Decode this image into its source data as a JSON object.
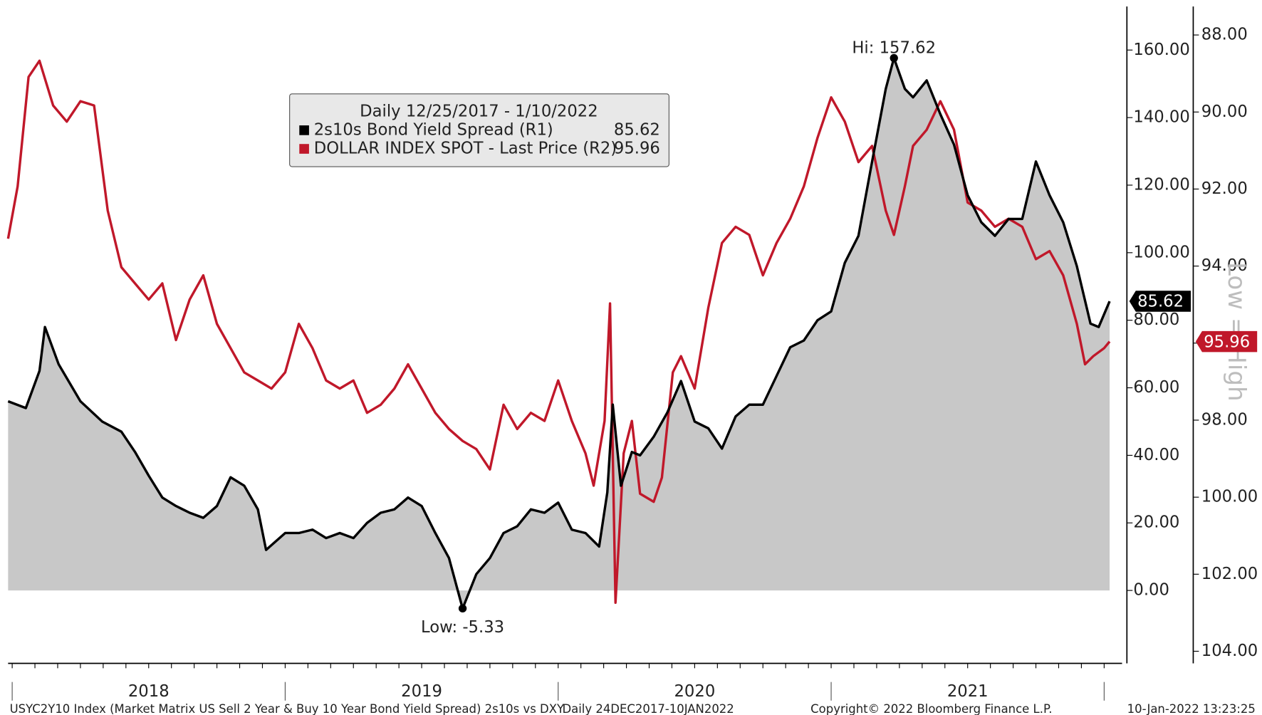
{
  "chart_data": {
    "type": "line",
    "legend_title": "Daily 12/25/2017 - 1/10/2022",
    "series": [
      {
        "name": "2s10s Bond Yield Spread (R1)",
        "color": "#000000",
        "fill": "#c8c8c8",
        "axis": "y",
        "last_value": 85.62,
        "x": [
          2017.985,
          2018.05,
          2018.1,
          2018.12,
          2018.17,
          2018.25,
          2018.33,
          2018.4,
          2018.45,
          2018.5,
          2018.55,
          2018.6,
          2018.65,
          2018.7,
          2018.75,
          2018.8,
          2018.85,
          2018.9,
          2018.93,
          2019.0,
          2019.05,
          2019.1,
          2019.15,
          2019.2,
          2019.25,
          2019.3,
          2019.35,
          2019.4,
          2019.45,
          2019.5,
          2019.55,
          2019.6,
          2019.65,
          2019.7,
          2019.75,
          2019.8,
          2019.85,
          2019.9,
          2019.95,
          2020.0,
          2020.05,
          2020.1,
          2020.15,
          2020.18,
          2020.2,
          2020.23,
          2020.27,
          2020.3,
          2020.35,
          2020.4,
          2020.45,
          2020.5,
          2020.55,
          2020.6,
          2020.65,
          2020.7,
          2020.75,
          2020.8,
          2020.85,
          2020.9,
          2020.95,
          2021.0,
          2021.05,
          2021.1,
          2021.15,
          2021.2,
          2021.23,
          2021.27,
          2021.3,
          2021.35,
          2021.4,
          2021.45,
          2021.5,
          2021.55,
          2021.6,
          2021.65,
          2021.7,
          2021.75,
          2021.8,
          2021.85,
          2021.9,
          2021.95,
          2021.98,
          2022.02
        ],
        "values": [
          56,
          54,
          65,
          78,
          67,
          56,
          50,
          47,
          41,
          34,
          27.5,
          25,
          23,
          21.5,
          25,
          33.5,
          31,
          24,
          12,
          17,
          17,
          18,
          15.5,
          17,
          15.5,
          20,
          23,
          24,
          27.5,
          25,
          17,
          9.6,
          -5.33,
          4.8,
          9.6,
          17,
          19,
          24,
          23,
          26,
          18,
          17,
          13,
          29,
          55,
          31,
          41,
          40,
          45.5,
          52.7,
          62,
          50,
          48,
          42,
          51.5,
          55,
          55,
          63.5,
          72,
          74,
          80,
          82.6,
          97,
          105,
          127,
          148.5,
          157.62,
          148.5,
          146,
          151,
          141,
          132,
          117,
          109,
          105,
          110,
          110,
          127,
          117,
          109,
          96,
          79,
          78,
          85.62
        ]
      },
      {
        "name": "DOLLAR INDEX SPOT - Last Price (R2)",
        "color": "#c0182a",
        "axis": "y2",
        "last_value": 95.96,
        "x": [
          2017.985,
          2018.02,
          2018.06,
          2018.1,
          2018.15,
          2018.2,
          2018.25,
          2018.3,
          2018.35,
          2018.4,
          2018.45,
          2018.5,
          2018.55,
          2018.6,
          2018.65,
          2018.7,
          2018.75,
          2018.8,
          2018.85,
          2018.9,
          2018.95,
          2019.0,
          2019.05,
          2019.1,
          2019.15,
          2019.2,
          2019.25,
          2019.3,
          2019.35,
          2019.4,
          2019.45,
          2019.5,
          2019.55,
          2019.6,
          2019.65,
          2019.7,
          2019.75,
          2019.8,
          2019.85,
          2019.9,
          2019.95,
          2020.0,
          2020.05,
          2020.1,
          2020.13,
          2020.17,
          2020.19,
          2020.21,
          2020.24,
          2020.27,
          2020.3,
          2020.35,
          2020.38,
          2020.42,
          2020.45,
          2020.5,
          2020.55,
          2020.6,
          2020.65,
          2020.7,
          2020.75,
          2020.8,
          2020.85,
          2020.9,
          2020.95,
          2021.0,
          2021.05,
          2021.1,
          2021.15,
          2021.2,
          2021.23,
          2021.27,
          2021.3,
          2021.35,
          2021.4,
          2021.45,
          2021.5,
          2021.55,
          2021.6,
          2021.65,
          2021.7,
          2021.75,
          2021.8,
          2021.85,
          2021.9,
          2021.93,
          2021.96,
          2022.0,
          2022.02
        ],
        "values": [
          93.29,
          91.93,
          89.09,
          88.67,
          89.83,
          90.25,
          89.72,
          89.83,
          92.56,
          94.03,
          94.45,
          94.87,
          94.45,
          95.92,
          94.87,
          94.24,
          95.5,
          96.13,
          96.76,
          96.97,
          97.18,
          96.76,
          95.5,
          96.13,
          96.97,
          97.18,
          96.97,
          97.81,
          97.6,
          97.18,
          96.55,
          97.18,
          97.81,
          98.23,
          98.54,
          98.75,
          99.28,
          97.6,
          98.23,
          97.81,
          98.02,
          96.97,
          98.02,
          98.86,
          99.7,
          98.02,
          94.97,
          102.74,
          98.86,
          98.02,
          99.91,
          100.12,
          99.49,
          96.76,
          96.34,
          97.18,
          95.08,
          93.4,
          92.98,
          93.19,
          94.24,
          93.4,
          92.77,
          91.93,
          90.67,
          89.62,
          90.25,
          91.3,
          90.88,
          92.56,
          93.19,
          91.93,
          90.88,
          90.46,
          89.72,
          90.46,
          92.35,
          92.56,
          92.98,
          92.77,
          92.98,
          93.82,
          93.61,
          94.24,
          95.5,
          96.55,
          96.34,
          96.13,
          95.96
        ]
      }
    ],
    "xlim": [
      2017.985,
      2022.03
    ],
    "xticks": [
      {
        "value": 2018.5,
        "label": "2018"
      },
      {
        "value": 2019.5,
        "label": "2019"
      },
      {
        "value": 2020.5,
        "label": "2020"
      },
      {
        "value": 2021.5,
        "label": "2021"
      }
    ],
    "ylim": [
      -20.4,
      172.9
    ],
    "yticks": [
      {
        "value": 0,
        "label": "0.00"
      },
      {
        "value": 20,
        "label": "20.00"
      },
      {
        "value": 40,
        "label": "40.00"
      },
      {
        "value": 60,
        "label": "60.00"
      },
      {
        "value": 80,
        "label": "80.00"
      },
      {
        "value": 100,
        "label": "100.00"
      },
      {
        "value": 120,
        "label": "120.00"
      },
      {
        "value": 140,
        "label": "140.00"
      },
      {
        "value": 160,
        "label": "160.00"
      }
    ],
    "y2lim": [
      87.26,
      104.21
    ],
    "y2_inverted": true,
    "y2ticks": [
      {
        "value": 88,
        "label": "88.00"
      },
      {
        "value": 90,
        "label": "90.00"
      },
      {
        "value": 92,
        "label": "92.00"
      },
      {
        "value": 94,
        "label": "94.00"
      },
      {
        "value": 96,
        "label": "96.00"
      },
      {
        "value": 98,
        "label": "98.00"
      },
      {
        "value": 100,
        "label": "100.00"
      },
      {
        "value": 102,
        "label": "102.00"
      },
      {
        "value": 104,
        "label": "104.00"
      }
    ],
    "y2_axis_note": "Low = High",
    "annotations": [
      {
        "label": "Hi: 157.62",
        "x": 2021.23,
        "y": 157.62,
        "position": "above"
      },
      {
        "label": "Low: -5.33",
        "x": 2019.65,
        "y": -5.33,
        "position": "below"
      }
    ],
    "footer": {
      "description": "USYC2Y10 Index (Market Matrix US Sell 2 Year & Buy 10 Year Bond Yield Spread) 2s10s vs DXY",
      "range": "Daily 24DEC2017-10JAN2022",
      "copyright": "Copyright© 2022 Bloomberg Finance L.P.",
      "timestamp": "10-Jan-2022 13:23:25"
    }
  }
}
